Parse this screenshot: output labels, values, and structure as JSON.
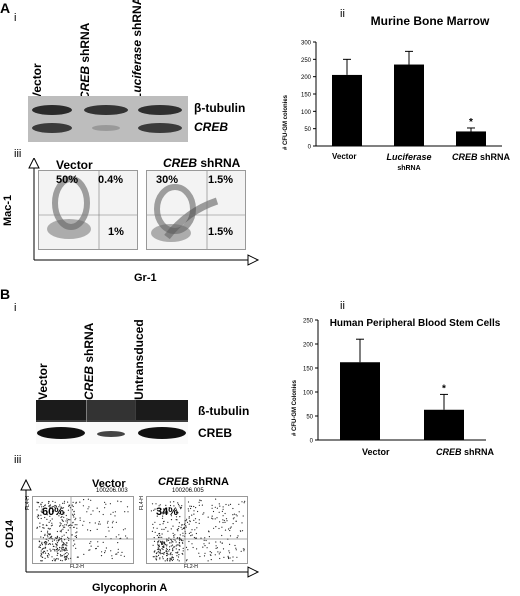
{
  "panel_A": {
    "letter": "A",
    "sub_i": "i",
    "sub_ii": "ii",
    "sub_iii": "iii",
    "blot_lanes": [
      "Vector",
      "CREB shRNA",
      "Luciferase shRNA"
    ],
    "blot_lane_parts": [
      {
        "italic": "",
        "plain": "Vector"
      },
      {
        "italic": "CREB",
        "plain": " shRNA"
      },
      {
        "italic": "Luciferase",
        "plain": " shRNA"
      }
    ],
    "blot_labels": [
      "β-tubulin",
      "CREB"
    ],
    "flow": {
      "samples": [
        "Vector",
        "CREB shRNA"
      ],
      "sample_parts": [
        {
          "italic": "",
          "plain": "Vector"
        },
        {
          "italic": "CREB",
          "plain": " shRNA"
        }
      ],
      "quadrants": [
        {
          "upper_left": "50%",
          "upper_right": "0.4%",
          "lower_right": "1%"
        },
        {
          "upper_left": "30%",
          "upper_right": "1.5%",
          "lower_right": "1.5%"
        }
      ],
      "y_axis": "Mac-1",
      "x_axis": "Gr-1"
    }
  },
  "panel_B": {
    "letter": "B",
    "sub_i": "i",
    "sub_ii": "ii",
    "sub_iii": "iii",
    "blot_lanes": [
      "Vector",
      "CREB shRNA",
      "Untransduced"
    ],
    "blot_lane_parts": [
      {
        "italic": "",
        "plain": "Vector"
      },
      {
        "italic": "CREB",
        "plain": " shRNA"
      },
      {
        "italic": "",
        "plain": "Untransduced"
      }
    ],
    "blot_labels": [
      "ß-tubulin",
      "CREB"
    ],
    "flow": {
      "samples": [
        "Vector",
        "CREB shRNA"
      ],
      "sample_parts": [
        {
          "italic": "",
          "plain": "Vector"
        },
        {
          "italic": "CREB",
          "plain": " shRNA"
        }
      ],
      "file_ids": [
        "100206.003",
        "100206.005"
      ],
      "quadrants": [
        "60%",
        "34%"
      ],
      "y_axis": "CD14",
      "x_axis": "Glycophorin A",
      "x_channel": "FL2-H",
      "y_channel": "FL4-H",
      "tick_labels": [
        "10⁰",
        "10¹",
        "10²",
        "10³",
        "10⁴"
      ]
    }
  },
  "chart_data": [
    {
      "type": "bar",
      "title": "Murine Bone Marrow",
      "ylabel": "# CFU-GM colonies",
      "xlabel": "",
      "categories": [
        "Vector",
        "Luciferase shRNA",
        "CREB shRNA"
      ],
      "category_parts": [
        {
          "italic": "",
          "plain": "Vector",
          "line2": ""
        },
        {
          "italic": "Luciferase",
          "plain": "",
          "line2": "shRNA"
        },
        {
          "italic": "CREB",
          "plain": " shRNA",
          "line2": ""
        }
      ],
      "values": [
        205,
        235,
        42
      ],
      "errors": [
        45,
        38,
        10
      ],
      "significance": [
        "",
        "",
        "*"
      ],
      "ylim": [
        0,
        300
      ],
      "yticks": [
        0,
        50,
        100,
        150,
        200,
        250,
        300
      ],
      "color": "#000000",
      "grid": false
    },
    {
      "type": "bar",
      "title": "Human Peripheral Blood Stem Cells",
      "ylabel": "# CFU-GM Colonies",
      "xlabel": "",
      "categories": [
        "Vector",
        "CREB shRNA"
      ],
      "category_parts": [
        {
          "italic": "",
          "plain": "Vector",
          "line2": ""
        },
        {
          "italic": "CREB",
          "plain": " shRNA",
          "line2": ""
        }
      ],
      "values": [
        162,
        63
      ],
      "errors": [
        48,
        32
      ],
      "significance": [
        "",
        "*"
      ],
      "ylim": [
        0,
        250
      ],
      "yticks": [
        0,
        50,
        100,
        150,
        200,
        250
      ],
      "color": "#000000",
      "grid": false
    }
  ]
}
